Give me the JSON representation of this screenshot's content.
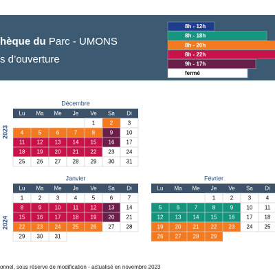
{
  "header": {
    "title_bold": "hèque du",
    "title_rest": "Parc - UMONS",
    "subtitle": "s d’ouverture"
  },
  "legend": [
    {
      "label": "8h - 12h",
      "color": "#1e3c8c"
    },
    {
      "label": "8h - 18h",
      "color": "#16957e"
    },
    {
      "label": "8h - 20h",
      "color": "#f47a20"
    },
    {
      "label": "8h - 22h",
      "color": "#c8124a"
    },
    {
      "label": "9h - 17h",
      "color": "#6a1f4b"
    },
    {
      "label": "fermé",
      "color": "#ffffff"
    }
  ],
  "weekdays": [
    "Lu",
    "Ma",
    "Me",
    "Je",
    "Ve",
    "Sa",
    "Di"
  ],
  "years": [
    {
      "year": "2023",
      "months": [
        {
          "name": "Décembre",
          "weeks": [
            [
              null,
              null,
              null,
              null,
              1,
              2,
              3
            ],
            [
              4,
              5,
              6,
              7,
              8,
              9,
              10
            ],
            [
              11,
              12,
              13,
              14,
              15,
              16,
              17
            ],
            [
              18,
              19,
              20,
              21,
              22,
              23,
              24
            ],
            [
              25,
              26,
              27,
              28,
              29,
              30,
              31
            ]
          ],
          "colors": [
            [
              null,
              null,
              null,
              null,
              null,
              "#f47a20",
              null
            ],
            [
              "#f47a20",
              "#f47a20",
              "#f47a20",
              "#f47a20",
              "#f47a20",
              "#6a1f4b",
              null
            ],
            [
              "#c8124a",
              "#c8124a",
              "#c8124a",
              "#c8124a",
              "#c8124a",
              "#6a1f4b",
              null
            ],
            [
              "#c8124a",
              "#c8124a",
              "#c8124a",
              "#c8124a",
              "#c8124a",
              null,
              null
            ],
            [
              null,
              null,
              null,
              null,
              null,
              null,
              null
            ]
          ]
        }
      ]
    },
    {
      "year": "2024",
      "months": [
        {
          "name": "Janvier",
          "weeks": [
            [
              1,
              2,
              3,
              4,
              5,
              6,
              7
            ],
            [
              8,
              9,
              10,
              11,
              12,
              13,
              14
            ],
            [
              15,
              16,
              17,
              18,
              19,
              20,
              21
            ],
            [
              22,
              23,
              24,
              25,
              26,
              27,
              28
            ],
            [
              29,
              30,
              31,
              null,
              null,
              null,
              null
            ]
          ],
          "colors": [
            [
              null,
              null,
              null,
              null,
              null,
              null,
              null
            ],
            [
              "#c8124a",
              "#c8124a",
              "#c8124a",
              "#c8124a",
              "#c8124a",
              "#6a1f4b",
              null
            ],
            [
              "#c8124a",
              "#c8124a",
              "#c8124a",
              "#c8124a",
              "#c8124a",
              "#6a1f4b",
              null
            ],
            [
              "#f47a20",
              "#f47a20",
              "#f47a20",
              "#f47a20",
              "#f47a20",
              null,
              null
            ],
            [
              null,
              null,
              null,
              null,
              null,
              null,
              null
            ]
          ]
        },
        {
          "name": "Février",
          "weeks": [
            [
              null,
              null,
              null,
              1,
              2,
              3,
              4
            ],
            [
              5,
              6,
              7,
              8,
              9,
              10,
              11
            ],
            [
              12,
              13,
              14,
              15,
              16,
              17,
              18
            ],
            [
              19,
              20,
              21,
              22,
              23,
              24,
              25
            ],
            [
              26,
              27,
              28,
              29,
              null,
              null,
              null
            ]
          ],
          "colors": [
            [
              null,
              null,
              null,
              null,
              null,
              null,
              null
            ],
            [
              "#16957e",
              "#16957e",
              "#16957e",
              "#16957e",
              "#16957e",
              null,
              null
            ],
            [
              "#16957e",
              "#16957e",
              "#16957e",
              "#16957e",
              "#16957e",
              null,
              null
            ],
            [
              "#f47a20",
              "#f47a20",
              "#f47a20",
              "#f47a20",
              "#f47a20",
              null,
              null
            ],
            [
              "#f47a20",
              "#f47a20",
              "#f47a20",
              "#f47a20",
              null,
              null,
              null
            ]
          ]
        }
      ]
    }
  ],
  "footer": "onnel, sous réserve de modification - actualisé en novembre 2023"
}
